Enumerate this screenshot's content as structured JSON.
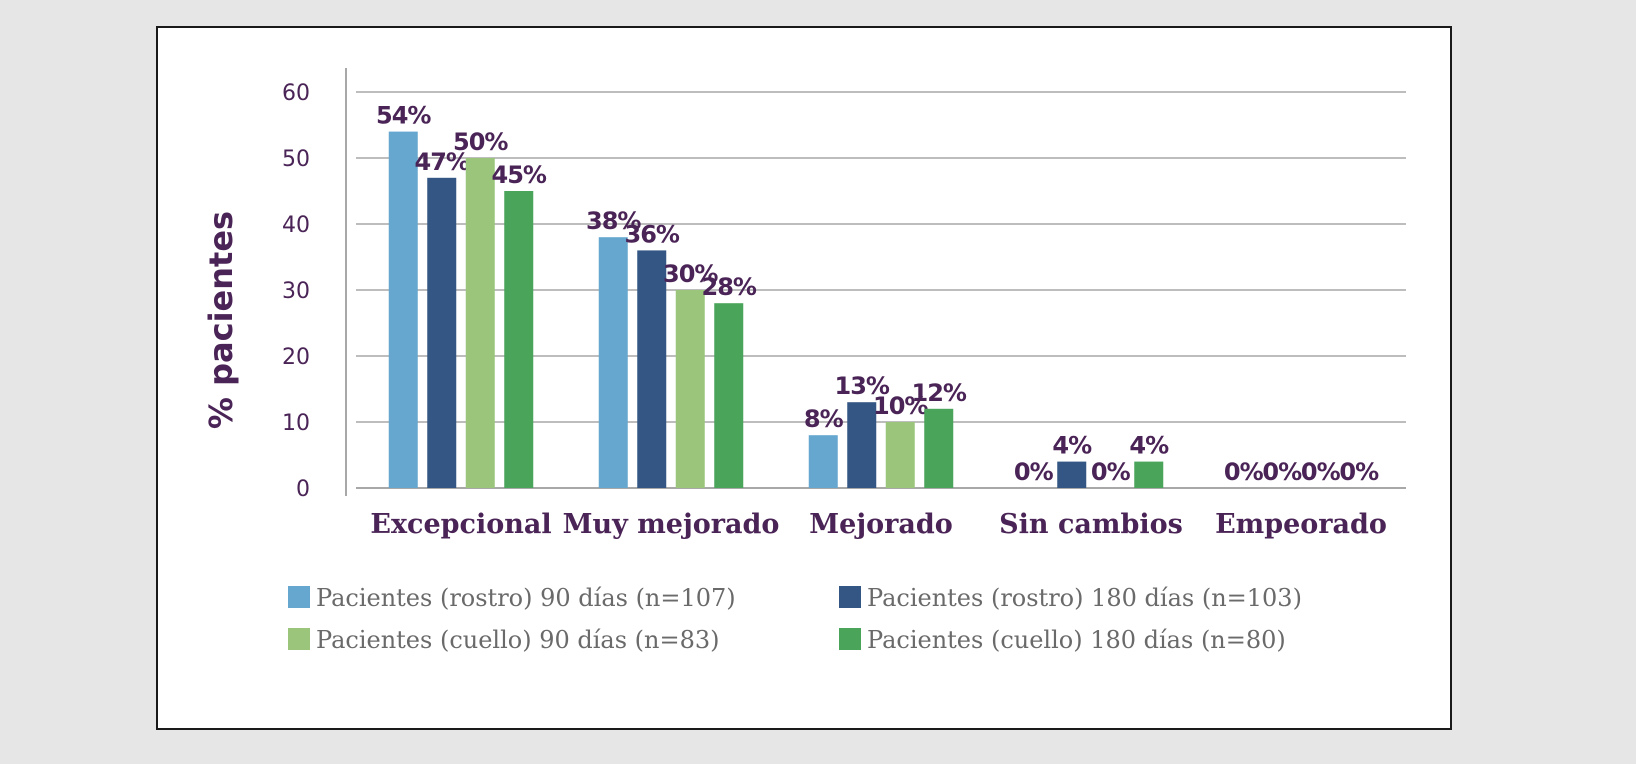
{
  "chart_data": {
    "type": "bar",
    "title": "",
    "xlabel": "",
    "ylabel": "% pacientes",
    "ylim": [
      0,
      60
    ],
    "yticks": [
      0,
      10,
      20,
      30,
      40,
      50,
      60
    ],
    "grid": true,
    "legend_position": "bottom",
    "categories": [
      "Excepcional",
      "Muy mejorado",
      "Mejorado",
      "Sin cambios",
      "Empeorado"
    ],
    "series": [
      {
        "name": "Pacientes (rostro) 90 días (n=107)",
        "color": "#65a7cf",
        "values": [
          54,
          38,
          8,
          0,
          0
        ],
        "labels": [
          "54%",
          "38%",
          "8%",
          "0%",
          "0%"
        ]
      },
      {
        "name": "Pacientes (rostro) 180 días (n=103)",
        "color": "#345684",
        "values": [
          47,
          36,
          13,
          4,
          0
        ],
        "labels": [
          "47%",
          "36%",
          "13%",
          "4%",
          "0%"
        ]
      },
      {
        "name": "Pacientes (cuello) 90 días (n=83)",
        "color": "#9ac57a",
        "values": [
          50,
          30,
          10,
          0,
          0
        ],
        "labels": [
          "50%",
          "30%",
          "10%",
          "0%",
          "0%"
        ]
      },
      {
        "name": "Pacientes (cuello) 180 días (n=80)",
        "color": "#4aa45a",
        "values": [
          45,
          28,
          12,
          4,
          0
        ],
        "labels": [
          "45%",
          "28%",
          "12%",
          "4%",
          "0%"
        ]
      }
    ]
  }
}
